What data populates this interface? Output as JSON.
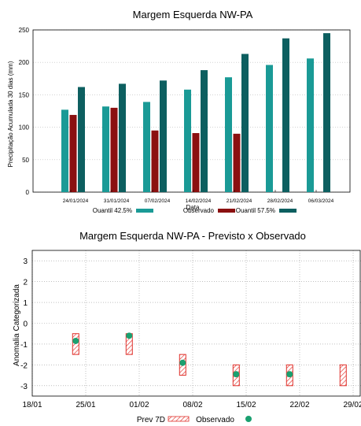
{
  "chart_data": [
    {
      "type": "bar",
      "title": "Margem Esquerda NW-PA",
      "xlabel": "Data",
      "ylabel": "Precipitação Acumulada 30 dias (mm)",
      "ylim": [
        0,
        250
      ],
      "yticks": [
        "0",
        "50",
        "100",
        "150",
        "200",
        "250"
      ],
      "grid": true,
      "legend_position": "bottom",
      "categories": [
        "24/01/2024",
        "31/01/2024",
        "07/02/2024",
        "14/02/2024",
        "21/02/2024",
        "28/02/2024",
        "06/03/2024"
      ],
      "series": [
        {
          "name": "Quantil 42.5%",
          "color": "#1a9a96",
          "values": [
            127,
            132,
            139,
            158,
            177,
            196,
            206
          ]
        },
        {
          "name": "Observado",
          "color": "#8b1010",
          "values": [
            119,
            130,
            95,
            91,
            90,
            null,
            null
          ]
        },
        {
          "name": "Quantil 57.5%",
          "color": "#0d5f60",
          "values": [
            162,
            167,
            172,
            188,
            213,
            237,
            245
          ]
        }
      ]
    },
    {
      "type": "scatter",
      "title": "Margem Esquerda NW-PA - Previsto x Observado",
      "xlabel": "",
      "ylabel": "Anomalia Categorizada",
      "ylim": [
        -3.5,
        3.5
      ],
      "yticks": [
        "3",
        "2",
        "1",
        "0",
        "-1",
        "-2",
        "-3"
      ],
      "xlim": [
        "18/01",
        "30/01"
      ],
      "xticks": [
        "18/01",
        "25/01",
        "01/02",
        "08/02",
        "15/02",
        "22/02",
        "29/02"
      ],
      "grid": true,
      "legend_position": "bottom",
      "series": [
        {
          "name": "Prev 7D",
          "color": "#e0302a",
          "dates": [
            "24/01",
            "31/01",
            "07/02",
            "14/02",
            "21/02",
            "28/02"
          ],
          "ranges": [
            [
              -1.5,
              -0.5
            ],
            [
              -1.5,
              -0.5
            ],
            [
              -2.5,
              -1.5
            ],
            [
              -3,
              -2
            ],
            [
              -3,
              -2
            ],
            [
              -3,
              -2
            ]
          ]
        },
        {
          "name": "Observado",
          "color": "#1aa070",
          "dates": [
            "24/01",
            "31/01",
            "07/02",
            "14/02",
            "21/02"
          ],
          "values": [
            -0.85,
            -0.6,
            -1.9,
            -2.45,
            -2.45
          ]
        }
      ]
    }
  ]
}
